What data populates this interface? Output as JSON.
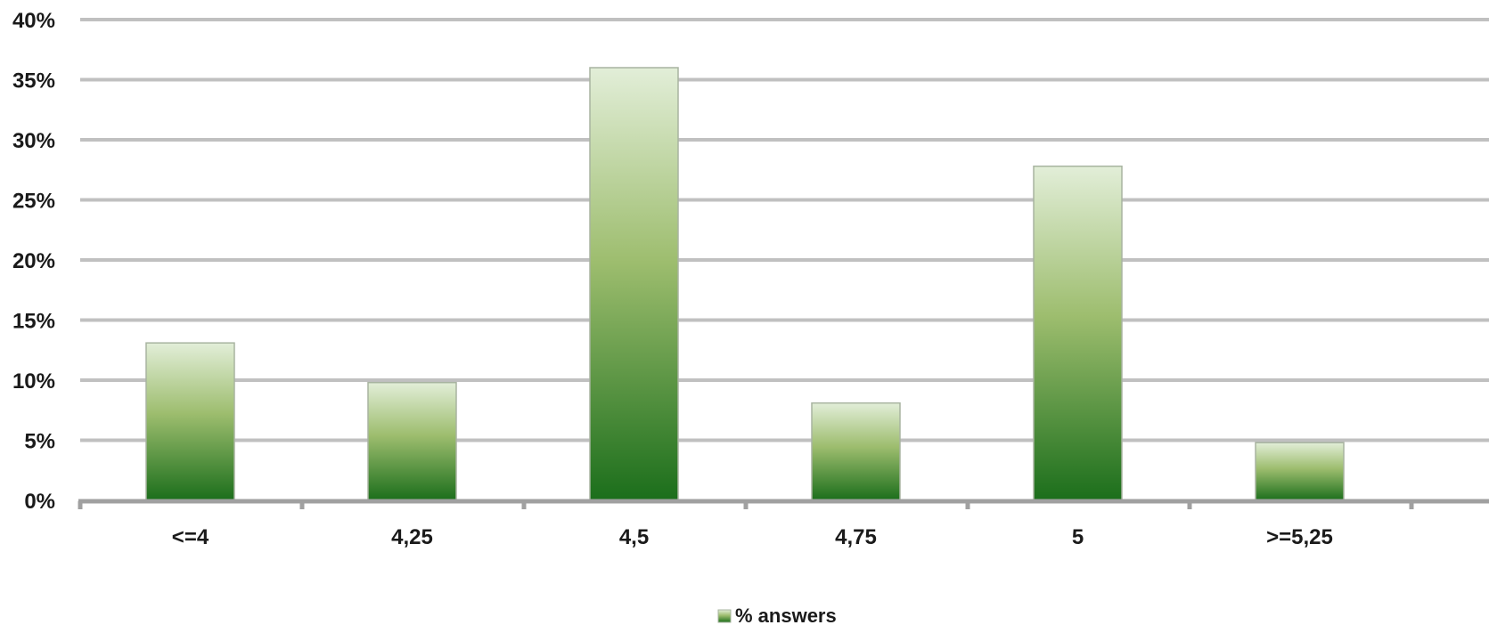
{
  "chart_data": {
    "type": "bar",
    "title": "",
    "xlabel": "",
    "ylabel": "",
    "categories": [
      "<=4",
      "4,25",
      "4,5",
      "4,75",
      "5",
      ">=5,25"
    ],
    "series": [
      {
        "name": "% answers",
        "values": [
          13.1,
          9.8,
          36.0,
          8.1,
          27.8,
          4.8
        ]
      }
    ],
    "ylim": [
      0,
      40
    ],
    "yticks": [
      "0%",
      "5%",
      "10%",
      "15%",
      "20%",
      "25%",
      "30%",
      "35%",
      "40%"
    ],
    "ytick_values": [
      0,
      5,
      10,
      15,
      20,
      25,
      30,
      35,
      40
    ],
    "grid": true,
    "legend_position": "bottom",
    "colors": {
      "bar_top": "#e2eed8",
      "bar_mid": "#9dbd6e",
      "bar_bottom": "#1b6e1b",
      "bar_border": "#a8b4a0",
      "grid": "#c0c0c0",
      "axis": "#a0a0a0"
    }
  }
}
